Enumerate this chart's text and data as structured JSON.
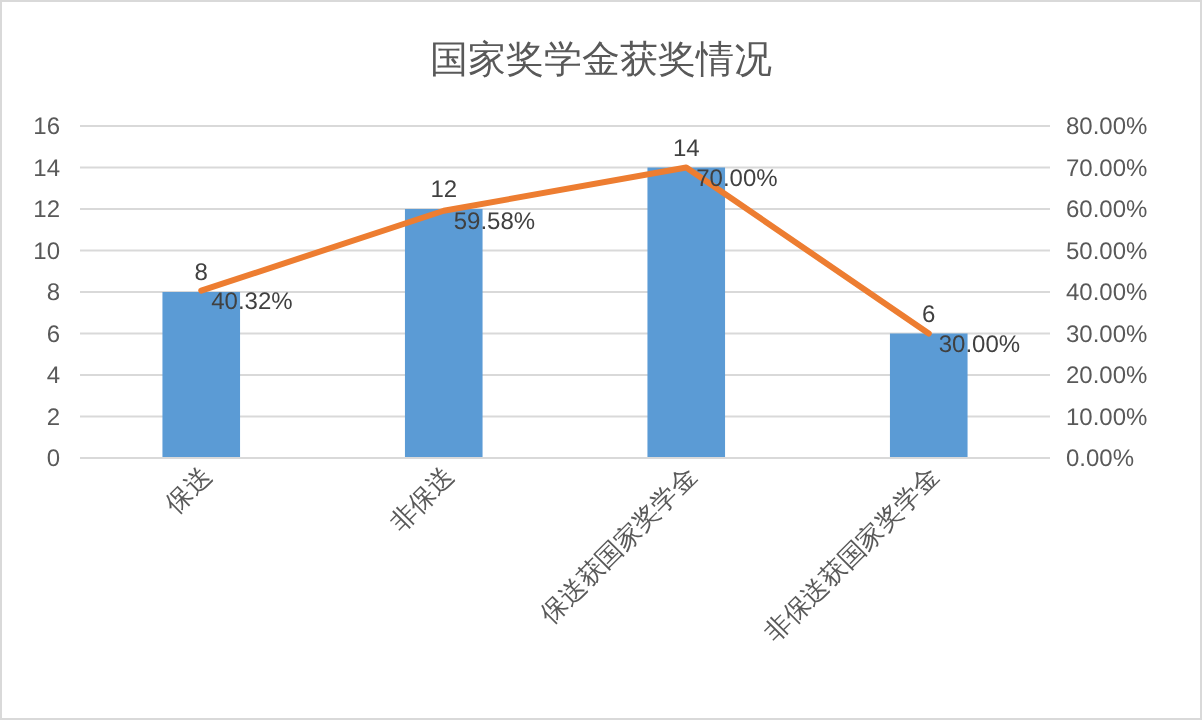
{
  "chart_data": {
    "type": "bar",
    "title": "国家奖学金获奖情况",
    "categories": [
      "保送",
      "非保送",
      "保送获国家奖学金",
      "非保送获国家奖学金"
    ],
    "series": [
      {
        "color": "#5b9bd5",
        "values": [
          8,
          12,
          14,
          6
        ],
        "value_labels": [
          "8",
          "12",
          "14",
          "6"
        ]
      },
      {
        "type": "line",
        "axis": "y2",
        "color": "#ed7d31",
        "values": [
          40.32,
          59.58,
          70,
          30
        ],
        "value_labels": [
          "40.32%",
          "59.58%",
          "70.00%",
          "30.00%"
        ]
      }
    ],
    "ylim": [
      0,
      16
    ],
    "yticks": [
      0,
      2,
      4,
      6,
      8,
      10,
      12,
      14,
      16
    ],
    "y2lim": [
      0,
      80
    ],
    "y2ticks": [
      {
        "value": 0,
        "label": "0.00%"
      },
      {
        "value": 10,
        "label": "10.00%"
      },
      {
        "value": 20,
        "label": "20.00%"
      },
      {
        "value": 30,
        "label": "30.00%"
      },
      {
        "value": 40,
        "label": "40.00%"
      },
      {
        "value": 50,
        "label": "50.00%"
      },
      {
        "value": 60,
        "label": "60.00%"
      },
      {
        "value": 70,
        "label": "70.00%"
      },
      {
        "value": 80,
        "label": "80.00%"
      }
    ],
    "grid": "y",
    "marker": "none",
    "line_style": "solid"
  }
}
